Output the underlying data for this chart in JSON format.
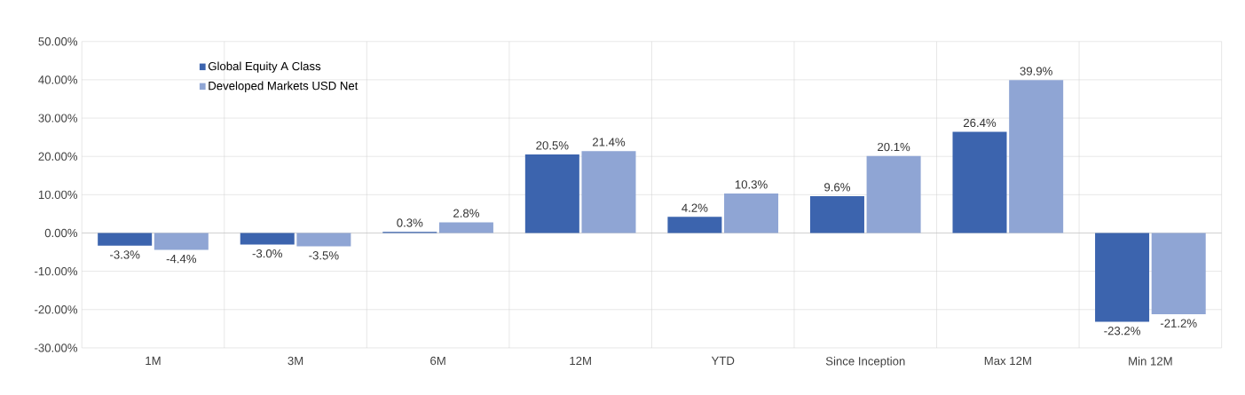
{
  "chart_data": {
    "type": "bar",
    "categories": [
      "1M",
      "3M",
      "6M",
      "12M",
      "YTD",
      "Since Inception",
      "Max 12M",
      "Min 12M"
    ],
    "series": [
      {
        "name": "Global Equity A Class",
        "color": "#3c64ae",
        "values": [
          -3.3,
          -3.0,
          0.3,
          20.5,
          4.2,
          9.6,
          26.4,
          -23.2
        ],
        "value_labels": [
          "-3.3%",
          "-3.0%",
          "0.3%",
          "20.5%",
          "4.2%",
          "9.6%",
          "26.4%",
          "-23.2%"
        ]
      },
      {
        "name": "Developed Markets USD Net",
        "color": "#8fa5d4",
        "values": [
          -4.4,
          -3.5,
          2.8,
          21.4,
          10.3,
          20.1,
          39.9,
          -21.2
        ],
        "value_labels": [
          "-4.4%",
          "-3.5%",
          "2.8%",
          "21.4%",
          "10.3%",
          "20.1%",
          "39.9%",
          "-21.2%"
        ]
      }
    ],
    "ylim": [
      -30,
      50
    ],
    "yticks": [
      {
        "value": -30,
        "label": "-30.00%"
      },
      {
        "value": -20,
        "label": "-20.00%"
      },
      {
        "value": -10,
        "label": "-10.00%"
      },
      {
        "value": 0,
        "label": "0.00%"
      },
      {
        "value": 10,
        "label": "10.00%"
      },
      {
        "value": 20,
        "label": "20.00%"
      },
      {
        "value": 30,
        "label": "30.00%"
      },
      {
        "value": 40,
        "label": "40.00%"
      },
      {
        "value": 50,
        "label": "50.00%"
      }
    ],
    "grid": true,
    "legend": "top left"
  }
}
